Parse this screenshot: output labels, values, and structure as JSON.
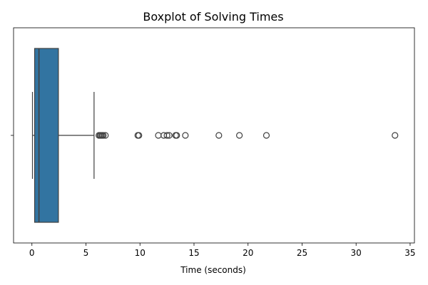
{
  "chart_data": {
    "type": "boxplot",
    "orientation": "horizontal",
    "title": "Boxplot of Solving Times",
    "xlabel": "Time (seconds)",
    "ylabel": "",
    "xlim": [
      -1.7,
      35.4
    ],
    "x_ticks": [
      0,
      5,
      10,
      15,
      20,
      25,
      30,
      35
    ],
    "x_tick_labels": [
      "0",
      "5",
      "10",
      "15",
      "20",
      "25",
      "30",
      "35"
    ],
    "y_tick_count": 1,
    "grid": false,
    "box": {
      "whisker_low": 0.05,
      "q1": 0.25,
      "median": 0.65,
      "q3": 2.45,
      "whisker_high": 5.75,
      "color": "#3274a1"
    },
    "outliers": [
      6.2,
      6.3,
      6.4,
      6.5,
      6.6,
      6.8,
      9.8,
      9.9,
      11.7,
      12.2,
      12.5,
      12.7,
      13.3,
      13.4,
      14.2,
      17.3,
      19.2,
      21.7,
      33.6
    ]
  }
}
